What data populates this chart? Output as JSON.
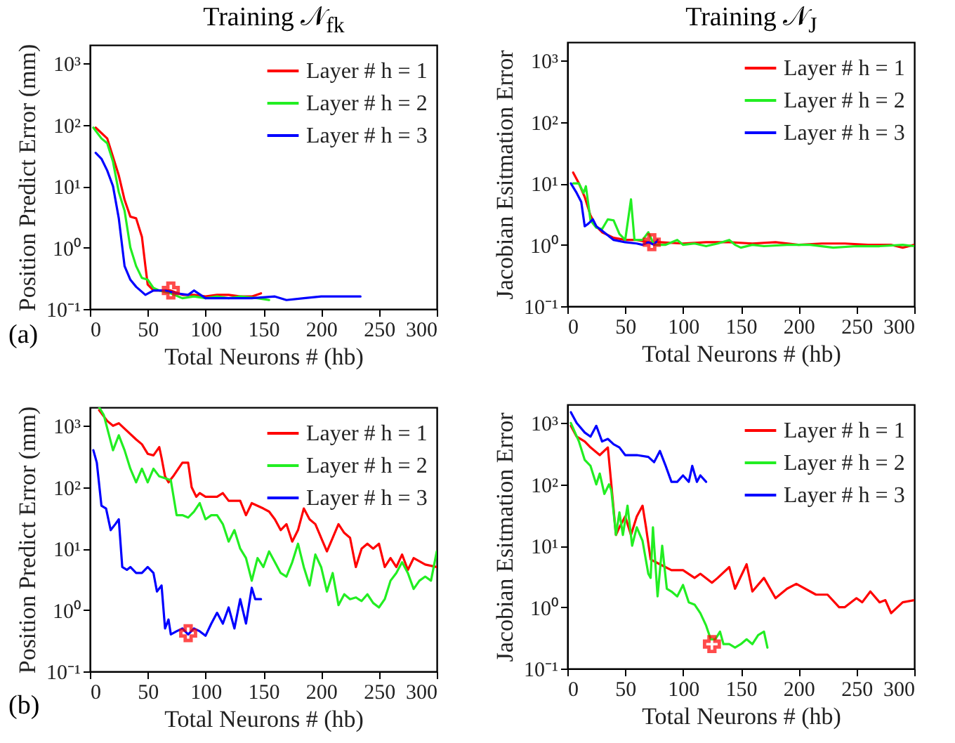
{
  "chart_data": [
    {
      "type": "line",
      "title": "Training 𝒩$_{fk}$",
      "xlabel": "Total Neurons # (hb)",
      "ylabel": "Position Predict Error (mm)",
      "annotations": [
        "(a)"
      ],
      "log": true,
      "legend": "top right",
      "xlim": [
        0,
        300
      ],
      "xticks": [
        0,
        50,
        100,
        150,
        200,
        250,
        300
      ],
      "ylim": [
        0.1,
        2000
      ],
      "yticks": [
        {
          "value": 0.1,
          "label": "10⁻¹"
        },
        {
          "value": 1,
          "label": "10⁰"
        },
        {
          "value": 10,
          "label": "10¹"
        },
        {
          "value": 100,
          "label": "10²"
        },
        {
          "value": 1000,
          "label": "10³"
        }
      ],
      "series": [
        {
          "name": "Layer # h = 1",
          "color": "#ff0000",
          "x": [
            5,
            15,
            20,
            25,
            30,
            35,
            40,
            45,
            48,
            50,
            55,
            60,
            70,
            80,
            90,
            100,
            110,
            120,
            130,
            140,
            148
          ],
          "values": [
            90,
            60,
            30,
            15,
            6,
            3.2,
            3,
            1.5,
            0.5,
            0.25,
            0.2,
            0.2,
            0.2,
            0.17,
            0.17,
            0.16,
            0.17,
            0.17,
            0.16,
            0.16,
            0.18
          ]
        },
        {
          "name": "Layer # h = 2",
          "color": "#22ee22",
          "x": [
            3,
            10,
            15,
            20,
            25,
            30,
            35,
            40,
            45,
            50,
            55,
            60,
            70,
            80,
            90,
            100,
            110,
            120,
            130,
            145,
            155
          ],
          "values": [
            90,
            60,
            50,
            25,
            8,
            4,
            1,
            0.5,
            0.32,
            0.3,
            0.22,
            0.2,
            0.18,
            0.15,
            0.16,
            0.15,
            0.16,
            0.15,
            0.16,
            0.15,
            0.14
          ]
        },
        {
          "name": "Layer # h = 3",
          "color": "#0000ff",
          "x": [
            5,
            10,
            15,
            20,
            25,
            30,
            35,
            40,
            48,
            55,
            65,
            75,
            85,
            90,
            100,
            120,
            140,
            160,
            170,
            185,
            200,
            215,
            234
          ],
          "values": [
            35,
            28,
            18,
            10,
            3,
            0.5,
            0.3,
            0.23,
            0.17,
            0.2,
            0.2,
            0.18,
            0.17,
            0.2,
            0.15,
            0.15,
            0.15,
            0.16,
            0.14,
            0.15,
            0.16,
            0.16,
            0.16
          ]
        },
        {
          "type": "scatter",
          "marker": "cross",
          "color": "#ff0000",
          "x": [
            70
          ],
          "values": [
            0.2
          ]
        }
      ]
    },
    {
      "type": "line",
      "title": "Training 𝒩$_{J}$",
      "xlabel": "Total Neurons # (hb)",
      "ylabel": "Jacobian Esitmation Error",
      "log": true,
      "legend": "top right",
      "xlim": [
        0,
        300
      ],
      "xticks": [
        0,
        50,
        100,
        150,
        200,
        250,
        300
      ],
      "ylim": [
        0.1,
        2000
      ],
      "yticks": [
        {
          "value": 0.1,
          "label": "10⁻¹"
        },
        {
          "value": 1,
          "label": "10⁰"
        },
        {
          "value": 10,
          "label": "10¹"
        },
        {
          "value": 100,
          "label": "10²"
        },
        {
          "value": 1000,
          "label": "10³"
        }
      ],
      "series": [
        {
          "name": "Layer # h = 1",
          "color": "#ff0000",
          "x": [
            5,
            10,
            15,
            20,
            25,
            30,
            40,
            50,
            60,
            70,
            80,
            100,
            120,
            140,
            160,
            180,
            200,
            220,
            240,
            260,
            280,
            290,
            300
          ],
          "values": [
            15,
            10,
            6,
            3,
            2,
            1.6,
            1.3,
            1.2,
            1.2,
            1.1,
            1.1,
            1.05,
            1.1,
            1.1,
            1.05,
            1.1,
            1,
            1.05,
            1.05,
            1,
            1,
            0.9,
            1
          ]
        },
        {
          "name": "Layer # h = 2",
          "color": "#22ee22",
          "x": [
            5,
            10,
            14,
            16,
            20,
            25,
            30,
            35,
            40,
            45,
            50,
            55,
            58,
            65,
            70,
            75,
            85,
            95,
            100,
            110,
            120,
            130,
            140,
            145,
            150,
            160,
            170,
            190,
            210,
            230,
            250,
            270,
            290,
            300
          ],
          "values": [
            10,
            10,
            7,
            9,
            2.5,
            1.9,
            1.8,
            2.6,
            2.5,
            1.5,
            1.2,
            5.5,
            1.2,
            1.2,
            1.6,
            1,
            1,
            1.2,
            1,
            1.05,
            0.95,
            1.05,
            1.2,
            1,
            0.9,
            1,
            0.95,
            1,
            1,
            0.9,
            0.95,
            0.95,
            1,
            0.95
          ]
        },
        {
          "name": "Layer # h = 3",
          "color": "#0000ff",
          "x": [
            3,
            8,
            12,
            15,
            18,
            22,
            25,
            30,
            40,
            50,
            60,
            65,
            70,
            75,
            78
          ],
          "values": [
            10,
            7,
            5,
            2,
            2.2,
            2.6,
            2,
            1.7,
            1.2,
            1.1,
            1.05,
            1,
            1.1,
            1,
            1.2
          ]
        },
        {
          "type": "scatter",
          "marker": "cross",
          "color": "#ff0000",
          "x": [
            73
          ],
          "values": [
            1.1
          ]
        }
      ]
    },
    {
      "type": "line",
      "xlabel": "Total Neurons # (hb)",
      "ylabel": "Position Predict Error (mm)",
      "annotations": [
        "(b)"
      ],
      "log": true,
      "legend": "top right",
      "xlim": [
        0,
        300
      ],
      "xticks": [
        0,
        50,
        100,
        150,
        200,
        250,
        300
      ],
      "ylim": [
        0.1,
        2000
      ],
      "yticks": [
        {
          "value": 0.1,
          "label": "10⁻¹"
        },
        {
          "value": 1,
          "label": "10⁰"
        },
        {
          "value": 10,
          "label": "10¹"
        },
        {
          "value": 100,
          "label": "10²"
        },
        {
          "value": 1000,
          "label": "10³"
        }
      ],
      "series": [
        {
          "name": "Layer # h = 1",
          "color": "#ff0000",
          "x": [
            8,
            15,
            20,
            25,
            30,
            40,
            45,
            50,
            55,
            60,
            62,
            65,
            68,
            72,
            80,
            85,
            88,
            92,
            95,
            100,
            110,
            115,
            120,
            130,
            135,
            140,
            150,
            155,
            160,
            165,
            170,
            175,
            180,
            185,
            190,
            195,
            200,
            205,
            210,
            215,
            220,
            225,
            230,
            235,
            240,
            245,
            250,
            255,
            260,
            265,
            270,
            275,
            280,
            290,
            300
          ],
          "values": [
            1800,
            1200,
            1000,
            1100,
            900,
            600,
            500,
            350,
            330,
            450,
            300,
            150,
            120,
            150,
            250,
            250,
            100,
            70,
            80,
            70,
            70,
            80,
            60,
            60,
            35,
            55,
            45,
            40,
            30,
            20,
            25,
            13,
            20,
            45,
            30,
            25,
            15,
            9,
            15,
            25,
            18,
            15,
            5,
            10,
            12,
            10,
            12,
            5,
            7,
            5,
            8,
            4.5,
            7,
            5.5,
            5
          ]
        },
        {
          "name": "Layer # h = 2",
          "color": "#22ee22",
          "x": [
            8,
            12,
            20,
            25,
            30,
            35,
            40,
            45,
            50,
            55,
            60,
            65,
            70,
            75,
            80,
            85,
            90,
            95,
            100,
            105,
            110,
            115,
            120,
            125,
            130,
            135,
            140,
            145,
            150,
            155,
            160,
            165,
            170,
            175,
            180,
            185,
            190,
            195,
            200,
            205,
            210,
            215,
            220,
            225,
            230,
            235,
            240,
            245,
            250,
            255,
            260,
            265,
            270,
            275,
            280,
            285,
            290,
            295,
            300
          ],
          "values": [
            2000,
            1500,
            400,
            700,
            400,
            200,
            120,
            200,
            120,
            200,
            150,
            140,
            130,
            35,
            35,
            32,
            40,
            55,
            30,
            35,
            35,
            25,
            13,
            20,
            10,
            7,
            3,
            7,
            5,
            9,
            6,
            4,
            3.5,
            6,
            12,
            5,
            2.5,
            8,
            5,
            2,
            4,
            1.2,
            1.8,
            1.5,
            1.6,
            1.4,
            1.8,
            1.3,
            1.1,
            1.5,
            3,
            4,
            6,
            4,
            2.2,
            3,
            3.5,
            3,
            9
          ]
        },
        {
          "name": "Layer # h = 3",
          "color": "#0000ff",
          "x": [
            3,
            6,
            10,
            14,
            18,
            22,
            25,
            28,
            32,
            35,
            40,
            45,
            50,
            55,
            58,
            62,
            65,
            68,
            70,
            75,
            80,
            85,
            90,
            95,
            100,
            105,
            110,
            115,
            120,
            125,
            130,
            135,
            140,
            143,
            148
          ],
          "values": [
            400,
            250,
            50,
            45,
            20,
            25,
            30,
            5,
            4.5,
            5,
            4,
            4,
            5,
            4,
            2,
            2.5,
            0.5,
            0.7,
            0.4,
            0.45,
            0.5,
            0.4,
            0.5,
            0.45,
            0.38,
            0.6,
            0.9,
            0.6,
            1.1,
            0.5,
            1.5,
            0.6,
            2.3,
            1.5,
            1.5
          ]
        },
        {
          "type": "scatter",
          "marker": "cross",
          "color": "#ff0000",
          "x": [
            85
          ],
          "values": [
            0.42
          ]
        }
      ]
    },
    {
      "type": "line",
      "xlabel": "Total Neurons # (hb)",
      "ylabel": "Jacobian Esitmation Error",
      "log": true,
      "legend": "top right",
      "xlim": [
        0,
        300
      ],
      "xticks": [
        0,
        50,
        100,
        150,
        200,
        250,
        300
      ],
      "ylim": [
        0.1,
        2000
      ],
      "yticks": [
        {
          "value": 0.1,
          "label": "10⁻¹"
        },
        {
          "value": 1,
          "label": "10⁰"
        },
        {
          "value": 10,
          "label": "10¹"
        },
        {
          "value": 100,
          "label": "10²"
        },
        {
          "value": 1000,
          "label": "10³"
        }
      ],
      "series": [
        {
          "name": "Layer # h = 1",
          "color": "#ff0000",
          "x": [
            3,
            8,
            15,
            20,
            28,
            35,
            38,
            42,
            45,
            50,
            55,
            60,
            65,
            68,
            72,
            80,
            90,
            100,
            110,
            115,
            125,
            130,
            140,
            145,
            155,
            160,
            170,
            180,
            190,
            198,
            210,
            215,
            225,
            235,
            240,
            250,
            255,
            262,
            270,
            275,
            280,
            290,
            300
          ],
          "values": [
            900,
            600,
            500,
            400,
            300,
            400,
            100,
            15,
            20,
            30,
            15,
            30,
            45,
            20,
            6,
            5,
            4,
            4,
            3,
            3.5,
            2.5,
            3,
            4.5,
            2,
            5,
            1.8,
            3,
            1.4,
            2,
            2.4,
            1.8,
            1.6,
            1.6,
            1,
            1,
            1.4,
            1.2,
            1.8,
            1.2,
            1.3,
            0.8,
            1.2,
            1.3
          ]
        },
        {
          "name": "Layer # h = 2",
          "color": "#22ee22",
          "x": [
            3,
            10,
            15,
            20,
            25,
            28,
            32,
            36,
            38,
            42,
            45,
            48,
            52,
            56,
            60,
            65,
            70,
            72,
            74,
            78,
            82,
            86,
            90,
            95,
            100,
            105,
            110,
            115,
            120,
            124,
            128,
            132,
            135,
            140,
            145,
            150,
            155,
            160,
            165,
            170,
            173
          ],
          "values": [
            1000,
            500,
            250,
            200,
            100,
            150,
            70,
            100,
            80,
            15,
            35,
            15,
            45,
            10,
            20,
            12,
            3.5,
            3,
            20,
            1.5,
            10,
            2,
            1.8,
            1.5,
            2.3,
            1.2,
            1.1,
            0.8,
            0.5,
            0.3,
            0.3,
            0.4,
            0.25,
            0.25,
            0.22,
            0.25,
            0.3,
            0.25,
            0.35,
            0.4,
            0.22
          ]
        },
        {
          "name": "Layer # h = 3",
          "color": "#0000ff",
          "x": [
            3,
            8,
            15,
            20,
            25,
            30,
            35,
            40,
            45,
            50,
            60,
            70,
            75,
            80,
            85,
            90,
            95,
            100,
            105,
            108,
            112,
            115,
            120
          ],
          "values": [
            1500,
            1000,
            700,
            600,
            900,
            500,
            550,
            450,
            400,
            300,
            300,
            280,
            230,
            350,
            200,
            110,
            110,
            140,
            110,
            200,
            110,
            140,
            110
          ]
        },
        {
          "type": "scatter",
          "marker": "cross",
          "color": "#ff0000",
          "x": [
            125
          ],
          "values": [
            0.25
          ]
        }
      ]
    }
  ]
}
